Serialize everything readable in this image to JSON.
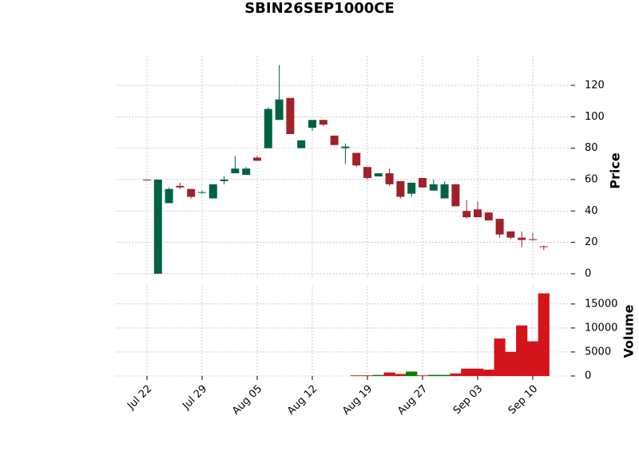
{
  "chart_data": {
    "type": "candlestick",
    "title": "SBIN26SEP1000CE",
    "categories": [
      "Jul 22",
      null,
      null,
      null,
      null,
      "Jul 29",
      null,
      null,
      null,
      null,
      "Aug 05",
      null,
      null,
      null,
      null,
      "Aug 12",
      null,
      null,
      null,
      null,
      "Aug 19",
      null,
      null,
      null,
      null,
      "Aug 27",
      null,
      null,
      null,
      null,
      "Sep 03",
      null,
      null,
      null,
      null,
      "Sep 10",
      null
    ],
    "open": [
      60,
      0,
      45,
      56,
      54,
      51.5,
      48,
      59,
      64,
      63,
      74,
      80,
      98,
      112,
      80,
      93,
      98,
      88,
      80,
      77,
      68,
      62,
      64,
      59,
      51,
      61,
      53,
      48,
      57,
      40,
      41,
      39,
      35,
      27,
      23,
      22,
      17.5
    ],
    "high": [
      60,
      60,
      55,
      58,
      54,
      53,
      57,
      62,
      75,
      68,
      75,
      106,
      133,
      112,
      85,
      98,
      98,
      88,
      83,
      77,
      68,
      64,
      67,
      59,
      58,
      61,
      60,
      59,
      57,
      47,
      46,
      39,
      35,
      27,
      27,
      26,
      18
    ],
    "low": [
      59.5,
      0,
      45,
      54,
      48,
      51,
      48,
      57,
      64,
      63,
      72,
      80,
      98,
      89,
      80,
      91,
      94,
      82,
      70,
      68,
      60,
      62,
      56,
      48,
      49,
      55,
      53,
      48,
      43,
      35,
      36,
      34,
      23,
      22,
      17,
      21,
      15
    ],
    "close": [
      59.5,
      60,
      54,
      55,
      49,
      52,
      57,
      60,
      67,
      67,
      72,
      105,
      111,
      89,
      85,
      98,
      95,
      82,
      81,
      69,
      61,
      64,
      57,
      49,
      58,
      55,
      57,
      57,
      43,
      36,
      36,
      34,
      25,
      23,
      21.5,
      21.5,
      17
    ],
    "volume": [
      0,
      0,
      0,
      0,
      0,
      0,
      0,
      0,
      0,
      0,
      0,
      0,
      0,
      0,
      0,
      0,
      0,
      0,
      0,
      100,
      100,
      200,
      700,
      400,
      900,
      100,
      200,
      200,
      500,
      1500,
      1500,
      1300,
      7800,
      5000,
      10500,
      7200,
      17200
    ],
    "up_color": "#006340",
    "down_color": "#a02128",
    "volume_up_color": "#008000",
    "volume_down_color": "#d3141b",
    "ylabel": "Price",
    "ylim": [
      -3.6,
      138.8
    ],
    "yticks": [
      0,
      20,
      40,
      60,
      80,
      100,
      120
    ],
    "volume_label": "Volume",
    "volume_ylim": [
      0,
      18800
    ],
    "volume_yticks": [
      0,
      5000,
      10000,
      15000
    ],
    "grid": true
  }
}
